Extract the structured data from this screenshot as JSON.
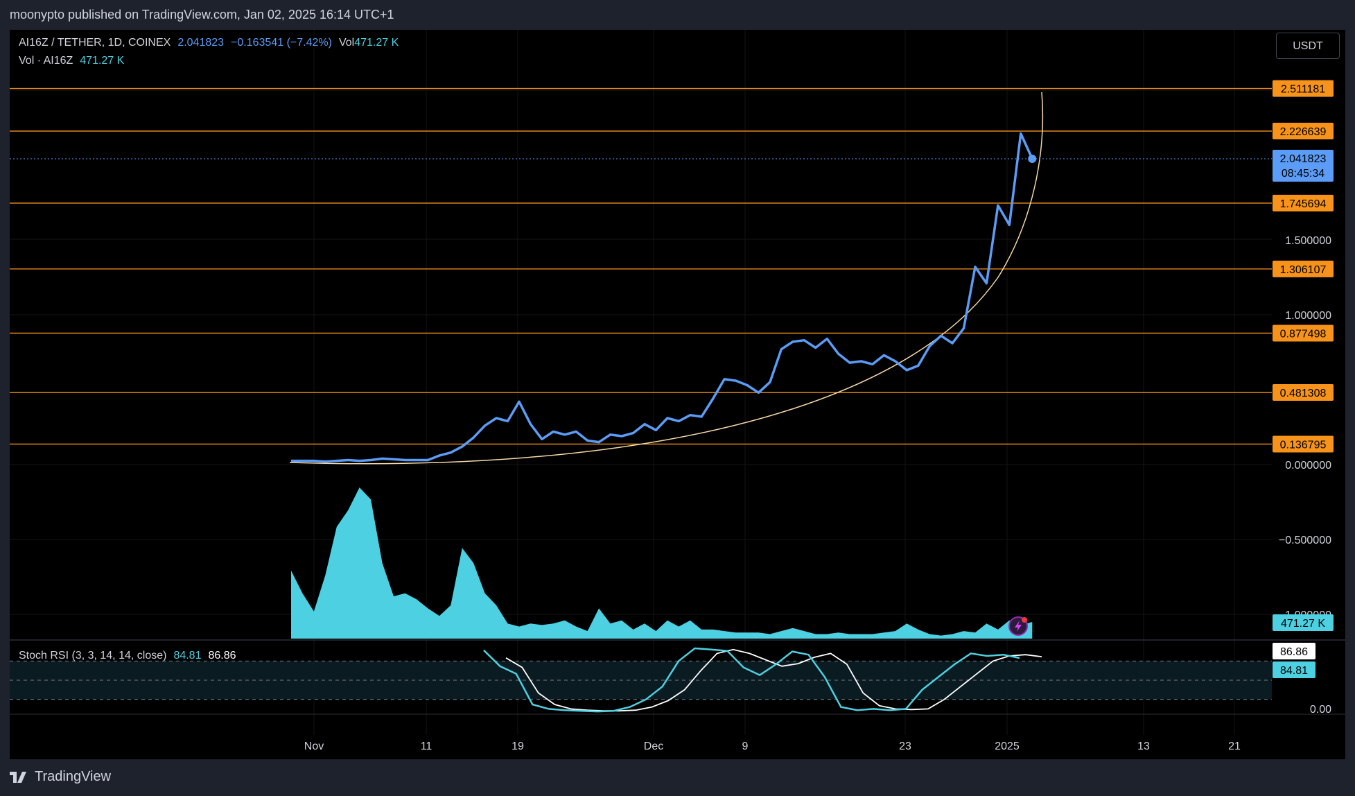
{
  "header": {
    "published_text": "moonypto published on TradingView.com, Jan 02, 2025 16:14 UTC+1"
  },
  "legend": {
    "symbol": "AI16Z / TETHER, 1D, COINEX",
    "price": "2.041823",
    "change": "−0.163541 (−7.42%)",
    "vol_label": "Vol",
    "vol_value": "471.27 K",
    "vol_line_label": "Vol · AI16Z",
    "vol_line_value": "471.27 K"
  },
  "currency_button": "USDT",
  "stoch_legend": {
    "label": "Stoch RSI (3, 3, 14, 14, close)",
    "k": "84.81",
    "d": "86.86"
  },
  "branding": "TradingView",
  "colors": {
    "background": "#000000",
    "frame": "#1e222d",
    "price_line": "#5b9cf6",
    "level_line": "#f7931a",
    "curve": "#f5d9a8",
    "volume": "#4dd0e1",
    "stoch_k": "#4dd0e1",
    "stoch_d": "#ffffff"
  },
  "chart_data": [
    {
      "type": "line",
      "name": "price",
      "x_ticks": [
        "Nov",
        "11",
        "19",
        "Dec",
        "9",
        "23",
        "2025",
        "13",
        "21"
      ],
      "y_ticks": [
        "1.500000",
        "1.000000",
        "0.000000",
        "−0.500000",
        "−1.000000"
      ],
      "price_axis_labels": [
        "2.511181",
        "2.226639",
        "2.041823",
        "08:45:34",
        "1.745694",
        "1.306107",
        "0.877498",
        "0.481308",
        "0.136795"
      ],
      "horizontal_levels": [
        2.511181,
        2.226639,
        1.745694,
        1.306107,
        0.877498,
        0.481308,
        0.136795
      ],
      "last_price": 2.041823,
      "countdown": "08:45:34",
      "ylim": [
        -1.0,
        2.6
      ],
      "values": [
        0.025,
        0.025,
        0.025,
        0.02,
        0.025,
        0.03,
        0.025,
        0.03,
        0.04,
        0.035,
        0.03,
        0.03,
        0.03,
        0.06,
        0.08,
        0.12,
        0.18,
        0.26,
        0.31,
        0.29,
        0.42,
        0.27,
        0.17,
        0.22,
        0.2,
        0.22,
        0.16,
        0.15,
        0.2,
        0.19,
        0.21,
        0.27,
        0.23,
        0.31,
        0.29,
        0.33,
        0.32,
        0.44,
        0.57,
        0.56,
        0.53,
        0.48,
        0.55,
        0.77,
        0.82,
        0.83,
        0.78,
        0.84,
        0.74,
        0.68,
        0.69,
        0.67,
        0.73,
        0.69,
        0.63,
        0.66,
        0.79,
        0.86,
        0.81,
        0.91,
        1.32,
        1.21,
        1.73,
        1.6,
        2.21,
        2.041823
      ]
    },
    {
      "type": "area",
      "name": "Vol · AI16Z",
      "last_value": "471.27 K",
      "values": [
        0.45,
        0.3,
        0.18,
        0.42,
        0.74,
        0.85,
        1.0,
        0.92,
        0.5,
        0.28,
        0.3,
        0.26,
        0.2,
        0.15,
        0.22,
        0.6,
        0.5,
        0.3,
        0.22,
        0.1,
        0.08,
        0.1,
        0.09,
        0.1,
        0.12,
        0.08,
        0.05,
        0.2,
        0.1,
        0.12,
        0.06,
        0.1,
        0.05,
        0.12,
        0.08,
        0.12,
        0.06,
        0.06,
        0.05,
        0.04,
        0.04,
        0.04,
        0.03,
        0.05,
        0.07,
        0.05,
        0.03,
        0.03,
        0.04,
        0.03,
        0.03,
        0.03,
        0.04,
        0.05,
        0.1,
        0.06,
        0.03,
        0.02,
        0.03,
        0.05,
        0.04,
        0.1,
        0.06,
        0.12,
        0.09,
        0.11
      ]
    },
    {
      "type": "line",
      "name": "Stoch RSI (3, 3, 14, 14, close)",
      "y_ticks": [
        "0.00"
      ],
      "axis_labels": [
        "86.86",
        "84.81"
      ],
      "bands": [
        80,
        50,
        20
      ],
      "ylim": [
        0,
        100
      ],
      "k": [
        97,
        72,
        60,
        12,
        5,
        3,
        2,
        1,
        2,
        8,
        20,
        40,
        80,
        100,
        98,
        96,
        70,
        58,
        75,
        95,
        90,
        55,
        8,
        3,
        5,
        3,
        5,
        35,
        55,
        75,
        92,
        88,
        90,
        84.81
      ],
      "d": [
        85,
        70,
        30,
        12,
        5,
        3,
        2,
        2,
        3,
        8,
        18,
        35,
        65,
        92,
        98,
        92,
        82,
        72,
        76,
        86,
        92,
        75,
        30,
        10,
        5,
        4,
        5,
        20,
        40,
        60,
        80,
        88,
        90,
        86.86
      ]
    }
  ]
}
